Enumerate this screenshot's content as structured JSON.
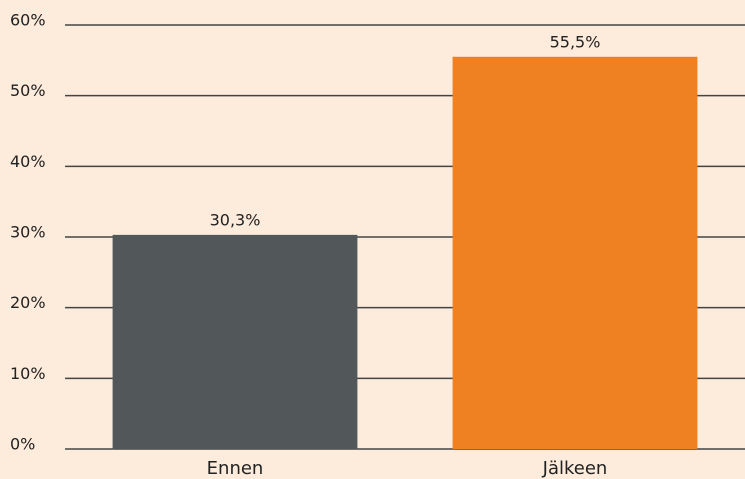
{
  "chart_data": {
    "type": "bar",
    "categories": [
      "Ennen",
      "Jälkeen"
    ],
    "values": [
      30.3,
      55.5
    ],
    "value_labels": [
      "30,3%",
      "55,5%"
    ],
    "colors": [
      "#52575a",
      "#f08122"
    ],
    "ylim": [
      0,
      60
    ],
    "yticks": [
      {
        "value": 0,
        "label": "0%"
      },
      {
        "value": 10,
        "label": "10%"
      },
      {
        "value": 20,
        "label": "20%"
      },
      {
        "value": 30,
        "label": "30%"
      },
      {
        "value": 40,
        "label": "40%"
      },
      {
        "value": 50,
        "label": "50%"
      },
      {
        "value": 60,
        "label": "60%"
      }
    ],
    "grid": true
  }
}
